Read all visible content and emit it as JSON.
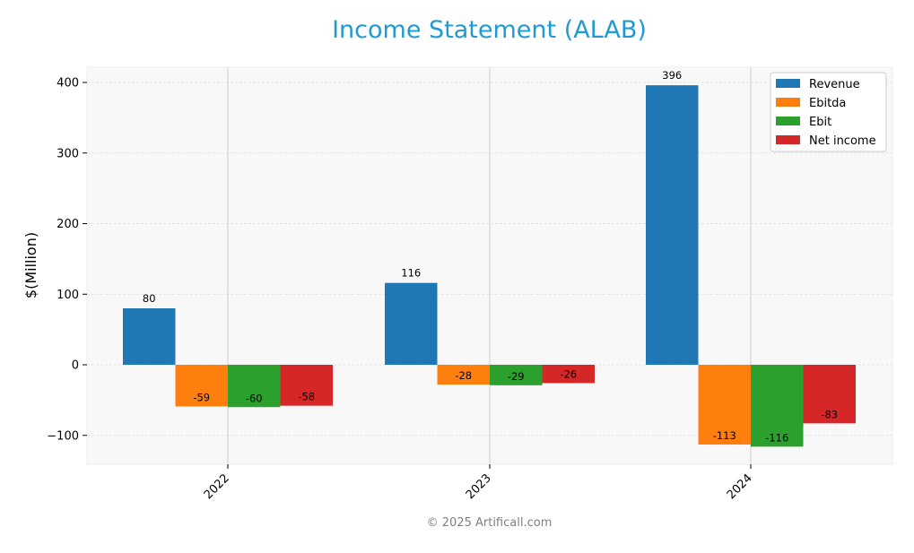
{
  "chart_data": {
    "type": "bar",
    "title": "Income Statement (ALAB)",
    "xlabel": "",
    "ylabel": "$(Million)",
    "categories": [
      "2022",
      "2023",
      "2024"
    ],
    "series": [
      {
        "name": "Revenue",
        "color": "#1f77b4",
        "values": [
          80,
          116,
          396
        ]
      },
      {
        "name": "Ebitda",
        "color": "#ff7f0e",
        "values": [
          -59,
          -28,
          -113
        ]
      },
      {
        "name": "Ebit",
        "color": "#2ca02c",
        "values": [
          -60,
          -29,
          -116
        ]
      },
      {
        "name": "Net income",
        "color": "#d62728",
        "values": [
          -58,
          -26,
          -83
        ]
      }
    ],
    "yticks": [
      -100,
      0,
      100,
      200,
      300,
      400
    ],
    "ylim": [
      -140,
      420
    ],
    "grid": true,
    "legend_position": "top-right"
  },
  "footer": {
    "copyright": "© 2025 Artificall.com"
  }
}
